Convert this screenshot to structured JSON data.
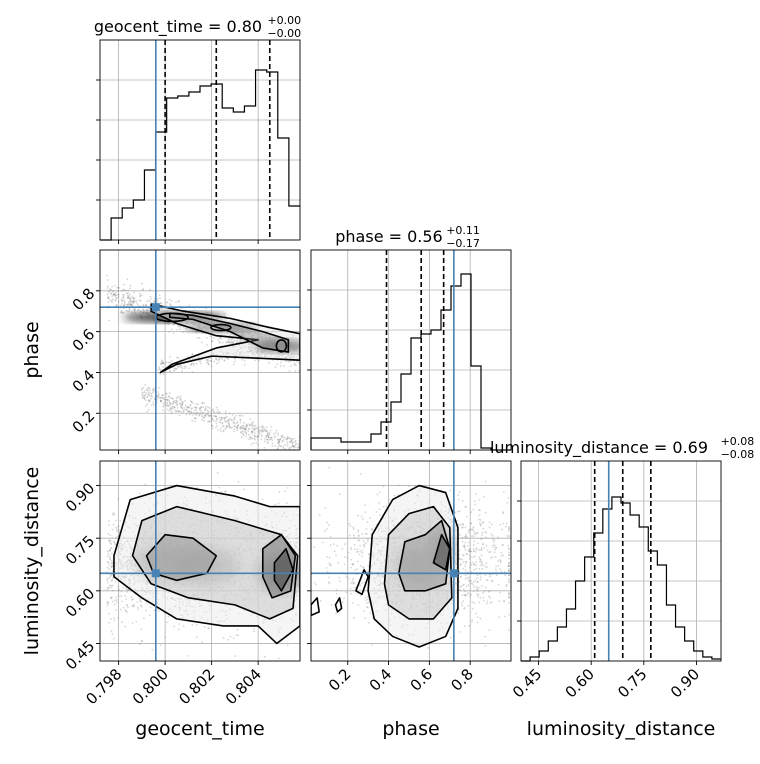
{
  "chart_data": {
    "type": "corner",
    "parameters": [
      "geocent_time",
      "phase",
      "luminosity_distance"
    ],
    "axis_labels": {
      "geocent_time": "geocent_time",
      "phase": "phase",
      "luminosity_distance": "luminosity_distance"
    },
    "diag_titles": [
      {
        "param": "geocent_time",
        "text": "geocent_time = 0.80",
        "plus": "+0.00",
        "minus": "−0.00"
      },
      {
        "param": "phase",
        "text": "phase = 0.56",
        "plus": "+0.11",
        "minus": "−0.17"
      },
      {
        "param": "luminosity_distance",
        "text": "luminosity_distance = 0.69",
        "plus": "+0.08",
        "minus": "−0.08"
      }
    ],
    "ranges": {
      "geocent_time": [
        0.7972,
        0.8058
      ],
      "phase": [
        0.02,
        1.0
      ],
      "luminosity_distance": [
        0.4,
        0.97
      ]
    },
    "ticks": {
      "geocent_time": [
        {
          "v": 0.798,
          "t": "0.798"
        },
        {
          "v": 0.8,
          "t": "0.800"
        },
        {
          "v": 0.802,
          "t": "0.802"
        },
        {
          "v": 0.804,
          "t": "0.804"
        }
      ],
      "phase_x": [
        {
          "v": 0.2,
          "t": "0.2"
        },
        {
          "v": 0.4,
          "t": "0.4"
        },
        {
          "v": 0.6,
          "t": "0.6"
        },
        {
          "v": 0.8,
          "t": "0.8"
        }
      ],
      "phase_y": [
        {
          "v": 0.2,
          "t": "0.2"
        },
        {
          "v": 0.4,
          "t": "0.4"
        },
        {
          "v": 0.6,
          "t": "0.6"
        },
        {
          "v": 0.8,
          "t": "0.8"
        }
      ],
      "luminosity_distance": [
        {
          "v": 0.45,
          "t": "0.45"
        },
        {
          "v": 0.6,
          "t": "0.60"
        },
        {
          "v": 0.75,
          "t": "0.75"
        },
        {
          "v": 0.9,
          "t": "0.90"
        }
      ]
    },
    "truths": {
      "geocent_time": 0.7996,
      "phase": 0.72,
      "luminosity_distance": 0.65
    },
    "quantiles": {
      "geocent_time": [
        0.8,
        0.8022,
        0.8045
      ],
      "phase": [
        0.39,
        0.56,
        0.67
      ],
      "luminosity_distance": [
        0.61,
        0.69,
        0.77
      ]
    },
    "histograms": {
      "geocent_time": [
        0.0,
        0.11,
        0.16,
        0.2,
        0.35,
        0.54,
        0.71,
        0.72,
        0.74,
        0.77,
        0.78,
        0.66,
        0.64,
        0.67,
        0.85,
        0.84,
        0.51,
        0.17
      ],
      "phase": [
        0.06,
        0.06,
        0.06,
        0.04,
        0.04,
        0.04,
        0.08,
        0.14,
        0.24,
        0.38,
        0.56,
        0.58,
        0.6,
        0.7,
        0.82,
        0.88,
        0.42,
        0.01,
        0.0,
        0.0
      ],
      "luminosity_distance": [
        0.0,
        0.02,
        0.05,
        0.1,
        0.17,
        0.26,
        0.4,
        0.52,
        0.64,
        0.76,
        0.82,
        0.79,
        0.73,
        0.67,
        0.55,
        0.48,
        0.28,
        0.17,
        0.1,
        0.05,
        0.02,
        0.01
      ]
    },
    "grid": true,
    "colors": {
      "truth": "#4682b4",
      "contour": "#000000",
      "points": "#7f7f7f",
      "fill_dark": "#333333",
      "fill_light": "#dddddd"
    }
  }
}
